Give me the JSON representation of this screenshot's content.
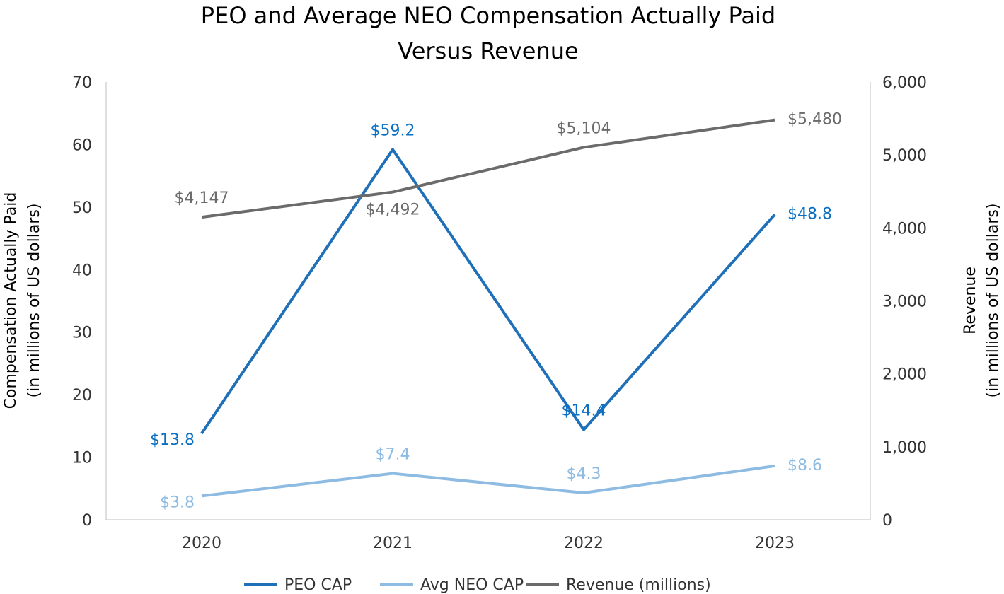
{
  "chart_data": {
    "type": "line",
    "title_lines": [
      "PEO and Average NEO Compensation Actually Paid",
      "Versus Revenue"
    ],
    "categories": [
      "2020",
      "2021",
      "2022",
      "2023"
    ],
    "y_left": {
      "label_lines": [
        "Compensation Actually Paid",
        "(in millions of US dollars)"
      ],
      "range": [
        0,
        70
      ],
      "ticks": [
        "0",
        "10",
        "20",
        "30",
        "40",
        "50",
        "60",
        "70"
      ]
    },
    "y_right": {
      "label_lines": [
        "Revenue",
        "(in millions of US dollars)"
      ],
      "range": [
        0,
        6000
      ],
      "ticks": [
        "0",
        "1,000",
        "2,000",
        "3,000",
        "4,000",
        "5,000",
        "6,000"
      ]
    },
    "grid": false,
    "legend_position": "bottom",
    "series": [
      {
        "name": "PEO CAP",
        "axis": "left",
        "color": "#1F70B8",
        "label_color": "#0A6FC2",
        "values": [
          13.8,
          59.2,
          14.4,
          48.8
        ],
        "labels": [
          "$13.8",
          "$59.2",
          "$14.4",
          "$48.8"
        ],
        "label_pos": [
          "left",
          "above",
          "above",
          "right"
        ]
      },
      {
        "name": "Avg NEO CAP",
        "axis": "left",
        "color": "#8DBBE2",
        "label_color": "#8DBBE2",
        "values": [
          3.8,
          7.4,
          4.3,
          8.6
        ],
        "labels": [
          "$3.8",
          "$7.4",
          "$4.3",
          "$8.6"
        ],
        "label_pos": [
          "left",
          "above",
          "above",
          "right"
        ]
      },
      {
        "name": "Revenue (millions)",
        "axis": "right",
        "color": "#6B6B6B",
        "label_color": "#6B6B6B",
        "values": [
          4147,
          4492,
          5104,
          5480
        ],
        "labels": [
          "$4,147",
          "$4,492",
          "$5,104",
          "$5,480"
        ],
        "label_pos": [
          "above",
          "below",
          "above",
          "right"
        ]
      }
    ]
  }
}
